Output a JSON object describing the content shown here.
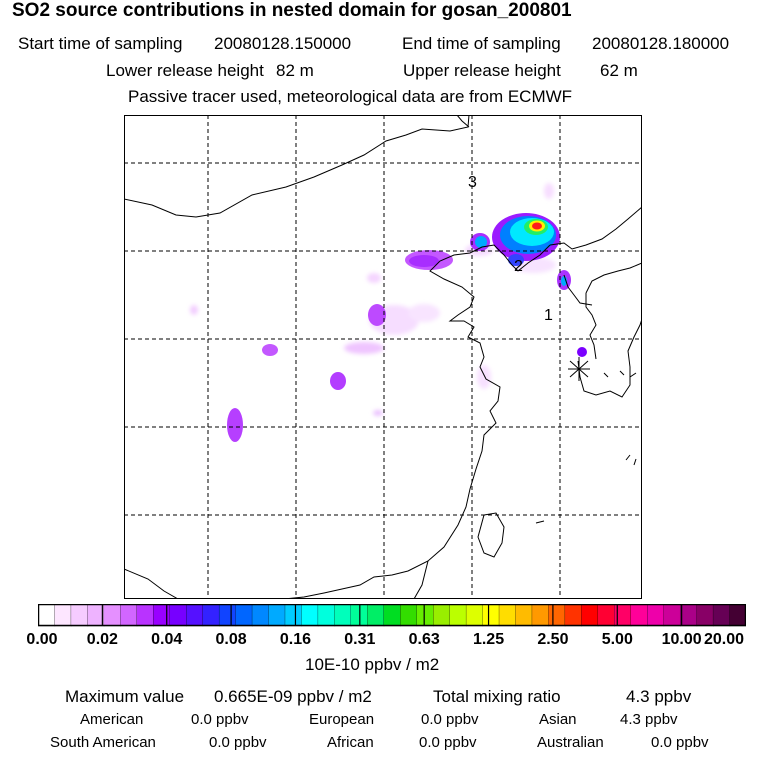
{
  "title": "SO2 source contributions in nested domain for gosan_200801",
  "header": {
    "start_label": "Start time of sampling",
    "start_value": "20080128.150000",
    "end_label": "End time of sampling",
    "end_value": "20080128.180000",
    "lower_label": "Lower release height",
    "lower_value": "82 m",
    "upper_label": "Upper release height",
    "upper_value": "62 m",
    "note": "Passive tracer used, meteorological data are from ECMWF"
  },
  "map": {
    "markers": [
      "1",
      "2",
      "3"
    ],
    "receptor": "gosan"
  },
  "colorbar": {
    "ticks": [
      "0.00",
      "0.02",
      "0.04",
      "0.08",
      "0.16",
      "0.31",
      "0.63",
      "1.25",
      "2.50",
      "5.00",
      "10.00",
      "20.00"
    ],
    "unit": "10E-10 ppbv / m2",
    "colors": [
      "#ffffff",
      "#fde6ff",
      "#f6ccff",
      "#eeb3ff",
      "#e590ff",
      "#d266ff",
      "#b933ff",
      "#9900ff",
      "#7700ff",
      "#5511ff",
      "#3322ff",
      "#1144ff",
      "#0066ff",
      "#0088ff",
      "#00aaff",
      "#00ccff",
      "#00ffff",
      "#00ffdd",
      "#00ffbb",
      "#00ff99",
      "#00ee66",
      "#00dd22",
      "#33dd00",
      "#66ee00",
      "#99ee00",
      "#bbff00",
      "#ddff00",
      "#ffff00",
      "#ffdd00",
      "#ffbb00",
      "#ff9900",
      "#ff6600",
      "#ff3300",
      "#ff0000",
      "#ff0033",
      "#ff0066",
      "#ff0099",
      "#ee00aa",
      "#cc0099",
      "#aa0088",
      "#880066",
      "#660055",
      "#440033"
    ]
  },
  "stats": {
    "max_label": "Maximum value",
    "max_value": "0.665E-09 ppbv / m2",
    "total_label": "Total mixing ratio",
    "total_value": "4.3 ppbv",
    "american_label": "American",
    "american_value": "0.0 ppbv",
    "european_label": "European",
    "european_value": "0.0 ppbv",
    "asian_label": "Asian",
    "asian_value": "4.3 ppbv",
    "south_american_label": "South American",
    "south_american_value": "0.0 ppbv",
    "african_label": "African",
    "african_value": "0.0 ppbv",
    "australian_label": "Australian",
    "australian_value": "0.0 ppbv"
  }
}
